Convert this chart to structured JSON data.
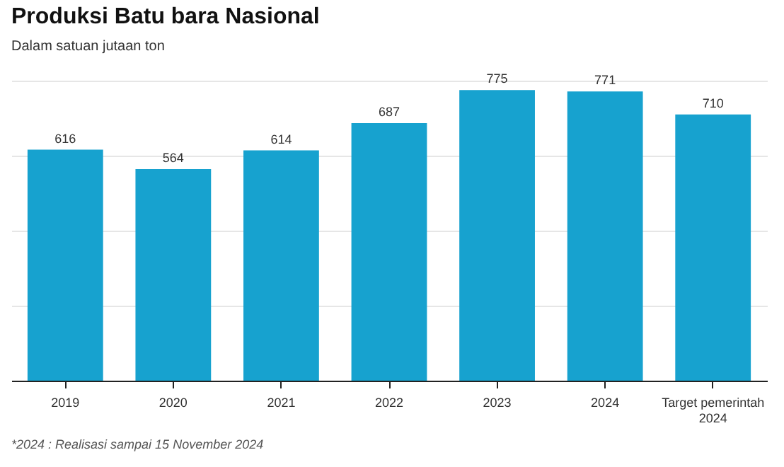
{
  "chart_data": {
    "type": "bar",
    "title": "Produksi Batu bara Nasional",
    "subtitle": "Dalam satuan jutaan ton",
    "categories": [
      "2019",
      "2020",
      "2021",
      "2022",
      "2023",
      "2024",
      "Target pemerintah 2024"
    ],
    "values": [
      616,
      564,
      614,
      687,
      775,
      771,
      710
    ],
    "color": "#17a2cf",
    "ylim": [
      0,
      800
    ],
    "yticks": [
      {
        "value": 0,
        "label": null
      },
      {
        "value": 200,
        "label": null
      },
      {
        "value": 400,
        "label": null
      },
      {
        "value": 600,
        "label": null
      },
      {
        "value": 800,
        "label": null
      }
    ],
    "grid": "y",
    "tick_labels": "x",
    "data_labels": true,
    "annotations": [
      "*2024 : Realisasi sampai 15 November 2024"
    ]
  }
}
